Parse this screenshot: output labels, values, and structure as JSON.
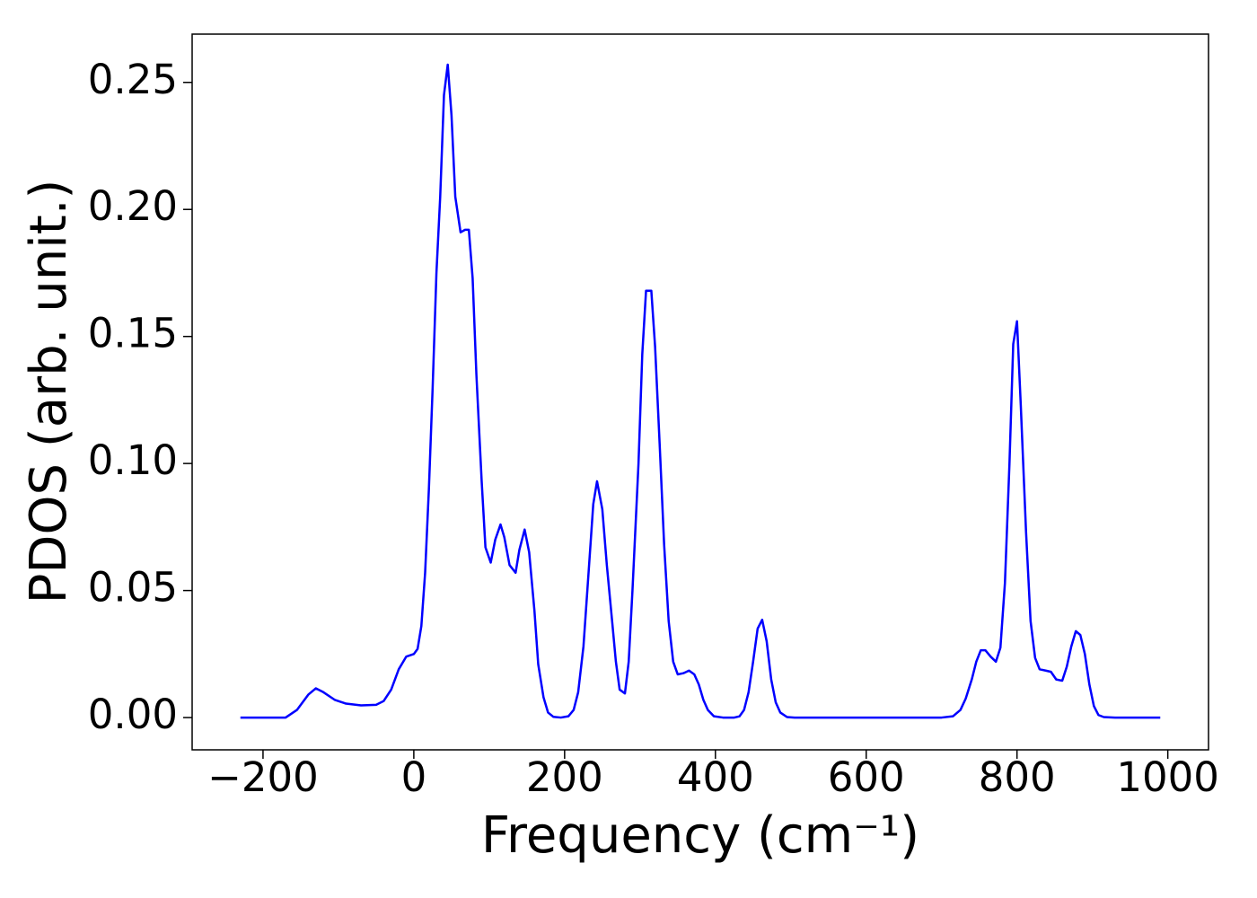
{
  "chart_data": {
    "type": "line",
    "xlabel": "Frequency (cm⁻¹)",
    "ylabel": "PDOS (arb. unit.)",
    "xlim": [
      -294,
      1054
    ],
    "ylim": [
      -0.0127,
      0.269
    ],
    "xticks": [
      {
        "value": -200,
        "label": "−200"
      },
      0,
      200,
      400,
      600,
      800,
      1000
    ],
    "yticks": [
      {
        "value": 0,
        "label": "0.00"
      },
      {
        "value": 0.05,
        "label": "0.05"
      },
      {
        "value": 0.1,
        "label": "0.10"
      },
      {
        "value": 0.15,
        "label": "0.15"
      },
      {
        "value": 0.2,
        "label": "0.20"
      },
      {
        "value": 0.25,
        "label": "0.25"
      }
    ],
    "grid": false,
    "series": [
      {
        "color": "#0000ff",
        "x": [
          -230,
          -170,
          -155,
          -140,
          -130,
          -120,
          -105,
          -90,
          -70,
          -50,
          -40,
          -30,
          -20,
          -10,
          0,
          5,
          10,
          15,
          20,
          25,
          30,
          35,
          40,
          45,
          50,
          55,
          62,
          68,
          73,
          78,
          83,
          90,
          95,
          102,
          108,
          115,
          120,
          127,
          135,
          140,
          147,
          153,
          160,
          165,
          172,
          178,
          185,
          195,
          205,
          212,
          218,
          225,
          232,
          238,
          243,
          250,
          256,
          263,
          268,
          273,
          280,
          285,
          290,
          298,
          303,
          308,
          315,
          320,
          326,
          332,
          338,
          344,
          350,
          358,
          365,
          372,
          378,
          384,
          390,
          398,
          410,
          425,
          432,
          438,
          444,
          450,
          456,
          462,
          468,
          474,
          480,
          486,
          495,
          505,
          700,
          715,
          725,
          732,
          740,
          746,
          752,
          758,
          765,
          772,
          778,
          784,
          790,
          795,
          800,
          805,
          812,
          818,
          824,
          830,
          838,
          845,
          852,
          860,
          866,
          872,
          878,
          884,
          890,
          896,
          902,
          908,
          915,
          930,
          990
        ],
        "values": [
          0,
          0,
          0.003,
          0.009,
          0.0115,
          0.01,
          0.007,
          0.0055,
          0.0048,
          0.005,
          0.0065,
          0.011,
          0.019,
          0.024,
          0.025,
          0.027,
          0.036,
          0.057,
          0.09,
          0.13,
          0.175,
          0.205,
          0.245,
          0.257,
          0.237,
          0.205,
          0.191,
          0.192,
          0.192,
          0.173,
          0.135,
          0.093,
          0.067,
          0.061,
          0.07,
          0.076,
          0.071,
          0.06,
          0.057,
          0.066,
          0.074,
          0.065,
          0.042,
          0.021,
          0.008,
          0.002,
          0.0003,
          0,
          0.0005,
          0.003,
          0.01,
          0.028,
          0.058,
          0.084,
          0.093,
          0.082,
          0.06,
          0.038,
          0.022,
          0.011,
          0.0095,
          0.022,
          0.05,
          0.1,
          0.143,
          0.168,
          0.168,
          0.146,
          0.108,
          0.068,
          0.038,
          0.022,
          0.017,
          0.0175,
          0.0185,
          0.017,
          0.013,
          0.007,
          0.003,
          0.0005,
          0,
          0,
          0.0005,
          0.003,
          0.01,
          0.022,
          0.035,
          0.0385,
          0.03,
          0.015,
          0.006,
          0.002,
          0.0002,
          0,
          0,
          0.0005,
          0.003,
          0.0075,
          0.015,
          0.022,
          0.0265,
          0.0265,
          0.024,
          0.022,
          0.0275,
          0.053,
          0.1,
          0.147,
          0.156,
          0.123,
          0.073,
          0.038,
          0.0235,
          0.019,
          0.0185,
          0.018,
          0.015,
          0.0145,
          0.02,
          0.028,
          0.034,
          0.0325,
          0.025,
          0.013,
          0.0045,
          0.001,
          0.0002,
          0,
          0
        ]
      }
    ]
  }
}
